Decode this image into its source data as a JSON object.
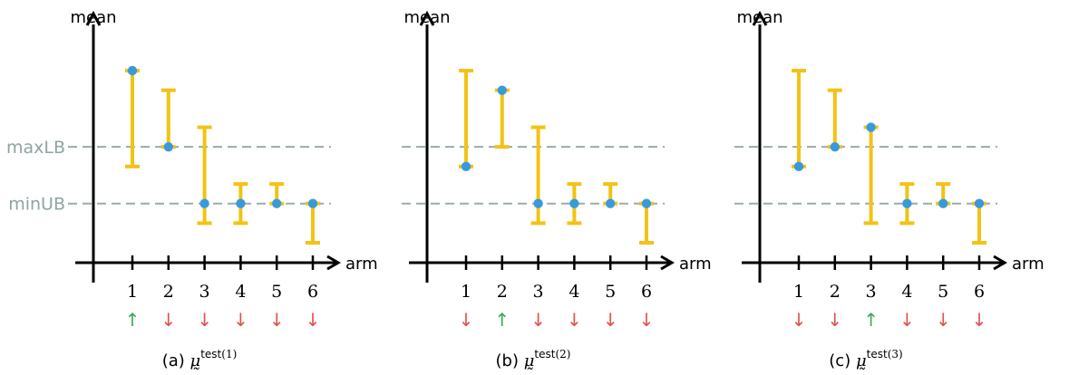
{
  "colors": {
    "axis": "#000000",
    "bar": "#f2c314",
    "point": "#3a9ad9",
    "ref_line": "#9aabab",
    "ref_label": "#8fa3a3",
    "up_arrow": "#3aaa55",
    "down_arrow": "#e0534a"
  },
  "shared": {
    "y_axis_label": "mean",
    "x_axis_label": "arm",
    "ref_labels": [
      "maxLB",
      "minUB"
    ],
    "up_glyph": "↑",
    "down_glyph": "↓"
  },
  "chart_data": [
    {
      "type": "errorbar",
      "caption_prefix": "(a)",
      "caption_symbol": "μ̰",
      "caption_sup": "test",
      "caption_sup_index": "(1)",
      "xlabel": "arm",
      "ylabel": "mean",
      "categories": [
        "1",
        "2",
        "3",
        "4",
        "5",
        "6"
      ],
      "ylim": [
        0,
        9
      ],
      "reference_lines": [
        {
          "name": "maxLB",
          "y": 5.5
        },
        {
          "name": "minUB",
          "y": 2.9
        }
      ],
      "intervals": [
        {
          "arm": "1",
          "lower": 4.6,
          "upper": 9.0,
          "point": 9.0
        },
        {
          "arm": "2",
          "lower": 5.5,
          "upper": 8.1,
          "point": 5.5
        },
        {
          "arm": "3",
          "lower": 2.0,
          "upper": 6.4,
          "point": 2.9
        },
        {
          "arm": "4",
          "lower": 2.0,
          "upper": 3.8,
          "point": 2.9
        },
        {
          "arm": "5",
          "lower": 2.9,
          "upper": 3.8,
          "point": 2.9
        },
        {
          "arm": "6",
          "lower": 1.1,
          "upper": 2.9,
          "point": 2.9
        }
      ],
      "arrows": [
        "up",
        "down",
        "down",
        "down",
        "down",
        "down"
      ]
    },
    {
      "type": "errorbar",
      "caption_prefix": "(b)",
      "caption_symbol": "μ̰",
      "caption_sup": "test",
      "caption_sup_index": "(2)",
      "xlabel": "arm",
      "ylabel": "mean",
      "categories": [
        "1",
        "2",
        "3",
        "4",
        "5",
        "6"
      ],
      "ylim": [
        0,
        9
      ],
      "reference_lines": [
        {
          "name": "maxLB",
          "y": 5.5
        },
        {
          "name": "minUB",
          "y": 2.9
        }
      ],
      "intervals": [
        {
          "arm": "1",
          "lower": 4.6,
          "upper": 9.0,
          "point": 4.6
        },
        {
          "arm": "2",
          "lower": 5.5,
          "upper": 8.1,
          "point": 8.1
        },
        {
          "arm": "3",
          "lower": 2.0,
          "upper": 6.4,
          "point": 2.9
        },
        {
          "arm": "4",
          "lower": 2.0,
          "upper": 3.8,
          "point": 2.9
        },
        {
          "arm": "5",
          "lower": 2.9,
          "upper": 3.8,
          "point": 2.9
        },
        {
          "arm": "6",
          "lower": 1.1,
          "upper": 2.9,
          "point": 2.9
        }
      ],
      "arrows": [
        "down",
        "up",
        "down",
        "down",
        "down",
        "down"
      ]
    },
    {
      "type": "errorbar",
      "caption_prefix": "(c)",
      "caption_symbol": "μ̰",
      "caption_sup": "test",
      "caption_sup_index": "(3)",
      "xlabel": "arm",
      "ylabel": "mean",
      "categories": [
        "1",
        "2",
        "3",
        "4",
        "5",
        "6"
      ],
      "ylim": [
        0,
        9
      ],
      "reference_lines": [
        {
          "name": "maxLB",
          "y": 5.5
        },
        {
          "name": "minUB",
          "y": 2.9
        }
      ],
      "intervals": [
        {
          "arm": "1",
          "lower": 4.6,
          "upper": 9.0,
          "point": 4.6
        },
        {
          "arm": "2",
          "lower": 5.5,
          "upper": 8.1,
          "point": 5.5
        },
        {
          "arm": "3",
          "lower": 2.0,
          "upper": 6.4,
          "point": 6.4
        },
        {
          "arm": "4",
          "lower": 2.0,
          "upper": 3.8,
          "point": 2.9
        },
        {
          "arm": "5",
          "lower": 2.9,
          "upper": 3.8,
          "point": 2.9
        },
        {
          "arm": "6",
          "lower": 1.1,
          "upper": 2.9,
          "point": 2.9
        }
      ],
      "arrows": [
        "down",
        "down",
        "up",
        "down",
        "down",
        "down"
      ]
    }
  ]
}
